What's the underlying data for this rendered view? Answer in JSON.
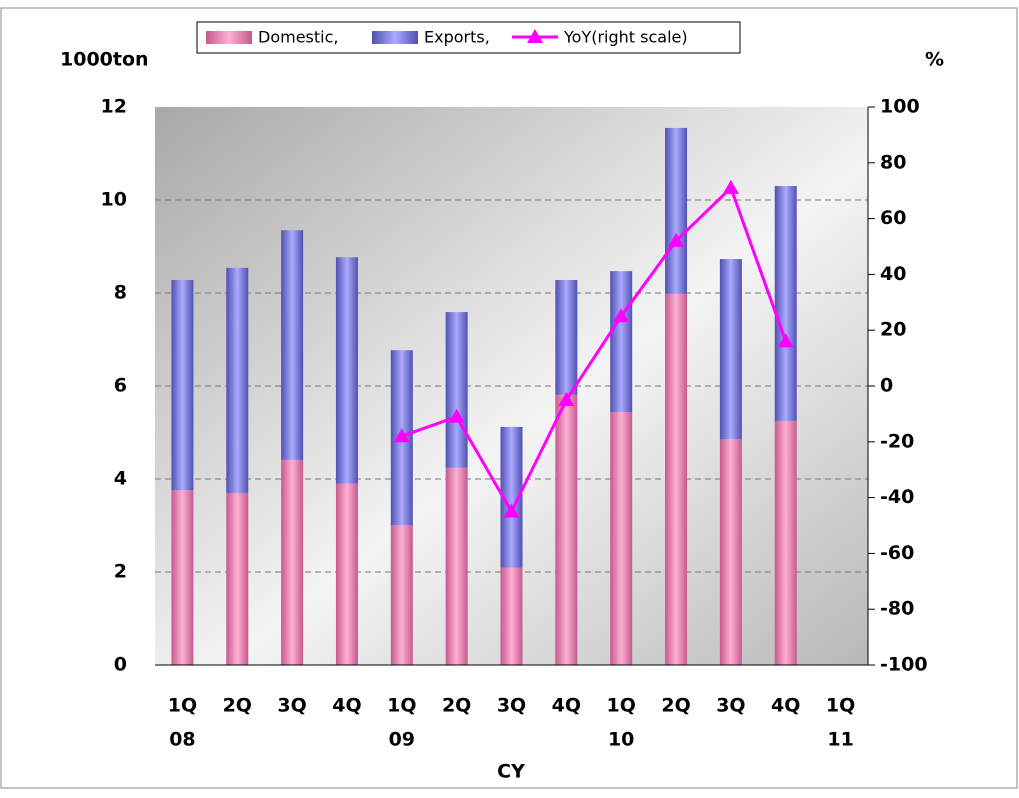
{
  "chart_data": {
    "type": "bar",
    "stacked": true,
    "y_label": "1000ton",
    "y2_label": "%",
    "x_label": "CY",
    "categories": [
      "1Q",
      "2Q",
      "3Q",
      "4Q",
      "1Q",
      "2Q",
      "3Q",
      "4Q",
      "1Q",
      "2Q",
      "3Q",
      "4Q",
      "1Q"
    ],
    "category_groups": [
      "08",
      null,
      null,
      null,
      "09",
      null,
      null,
      null,
      "10",
      null,
      null,
      null,
      "11"
    ],
    "series": [
      {
        "name": "Domestic,",
        "color": "#e87fb0",
        "values": [
          3.76,
          3.7,
          4.41,
          3.9,
          3.01,
          4.24,
          2.09,
          5.81,
          5.44,
          7.98,
          4.86,
          5.25,
          null
        ]
      },
      {
        "name": "Exports,",
        "color": "#8080e0",
        "values": [
          4.52,
          4.84,
          4.94,
          4.87,
          3.76,
          3.35,
          3.03,
          2.47,
          3.03,
          3.57,
          3.87,
          5.05,
          null
        ]
      },
      {
        "name": "YoY(right scale)",
        "color": "#ff00ff",
        "type": "line",
        "axis": "y2",
        "values": [
          null,
          null,
          null,
          null,
          -18,
          -11,
          -45,
          -5,
          25,
          52,
          71,
          16,
          null
        ]
      }
    ],
    "ylim": [
      0,
      12
    ],
    "yticks": [
      0,
      2,
      4,
      6,
      8,
      10,
      12
    ],
    "y2lim": [
      -100,
      100
    ],
    "y2ticks": [
      -100,
      -80,
      -60,
      -40,
      -20,
      0,
      20,
      40,
      60,
      80,
      100
    ],
    "grid": true
  }
}
